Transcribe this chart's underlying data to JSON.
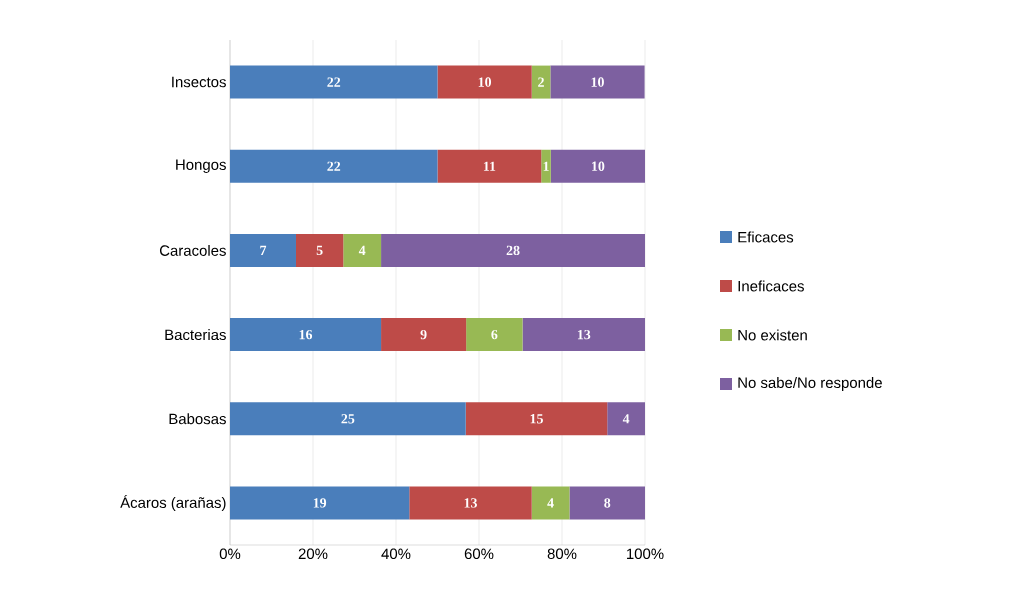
{
  "chart_data": {
    "type": "bar",
    "orientation": "horizontal",
    "stacked": true,
    "categories": [
      "Insectos",
      "Hongos",
      "Caracoles",
      "Bacterias",
      "Babosas",
      "Ácaros (arañas)"
    ],
    "series": [
      {
        "name": "Eficaces",
        "color": "#4a7ebb",
        "values": [
          50,
          50,
          15.9,
          36.4,
          56.8,
          43.2
        ]
      },
      {
        "name": "Ineficaces",
        "color": "#be4b48",
        "values": [
          22.7,
          25,
          11.4,
          20.5,
          34.1,
          29.5
        ]
      },
      {
        "name": "No existen",
        "color": "#98b954",
        "values": [
          4.5,
          2.3,
          9.1,
          13.6,
          0,
          9.1
        ]
      },
      {
        "name": "No sabe/No responde",
        "color": "#7d60a0",
        "values": [
          22.7,
          22.7,
          63.6,
          29.5,
          9.1,
          18.2
        ]
      }
    ],
    "xlim": [
      0,
      100
    ],
    "xticks": [
      {
        "value": 0,
        "label": "0%"
      },
      {
        "value": 20,
        "label": "20%"
      },
      {
        "value": 40,
        "label": "40%"
      },
      {
        "value": 60,
        "label": "60%"
      },
      {
        "value": 80,
        "label": "80%"
      },
      {
        "value": 100,
        "label": "100%"
      }
    ],
    "annotations": [
      "22",
      "10",
      "2",
      "10",
      "22",
      "11",
      "1",
      "10",
      "7",
      "5",
      "4",
      "28",
      "16",
      "9",
      "6",
      "13",
      "25",
      "15",
      "4",
      "19",
      "13",
      "4",
      "8"
    ],
    "grid": "x",
    "legend": "right"
  }
}
